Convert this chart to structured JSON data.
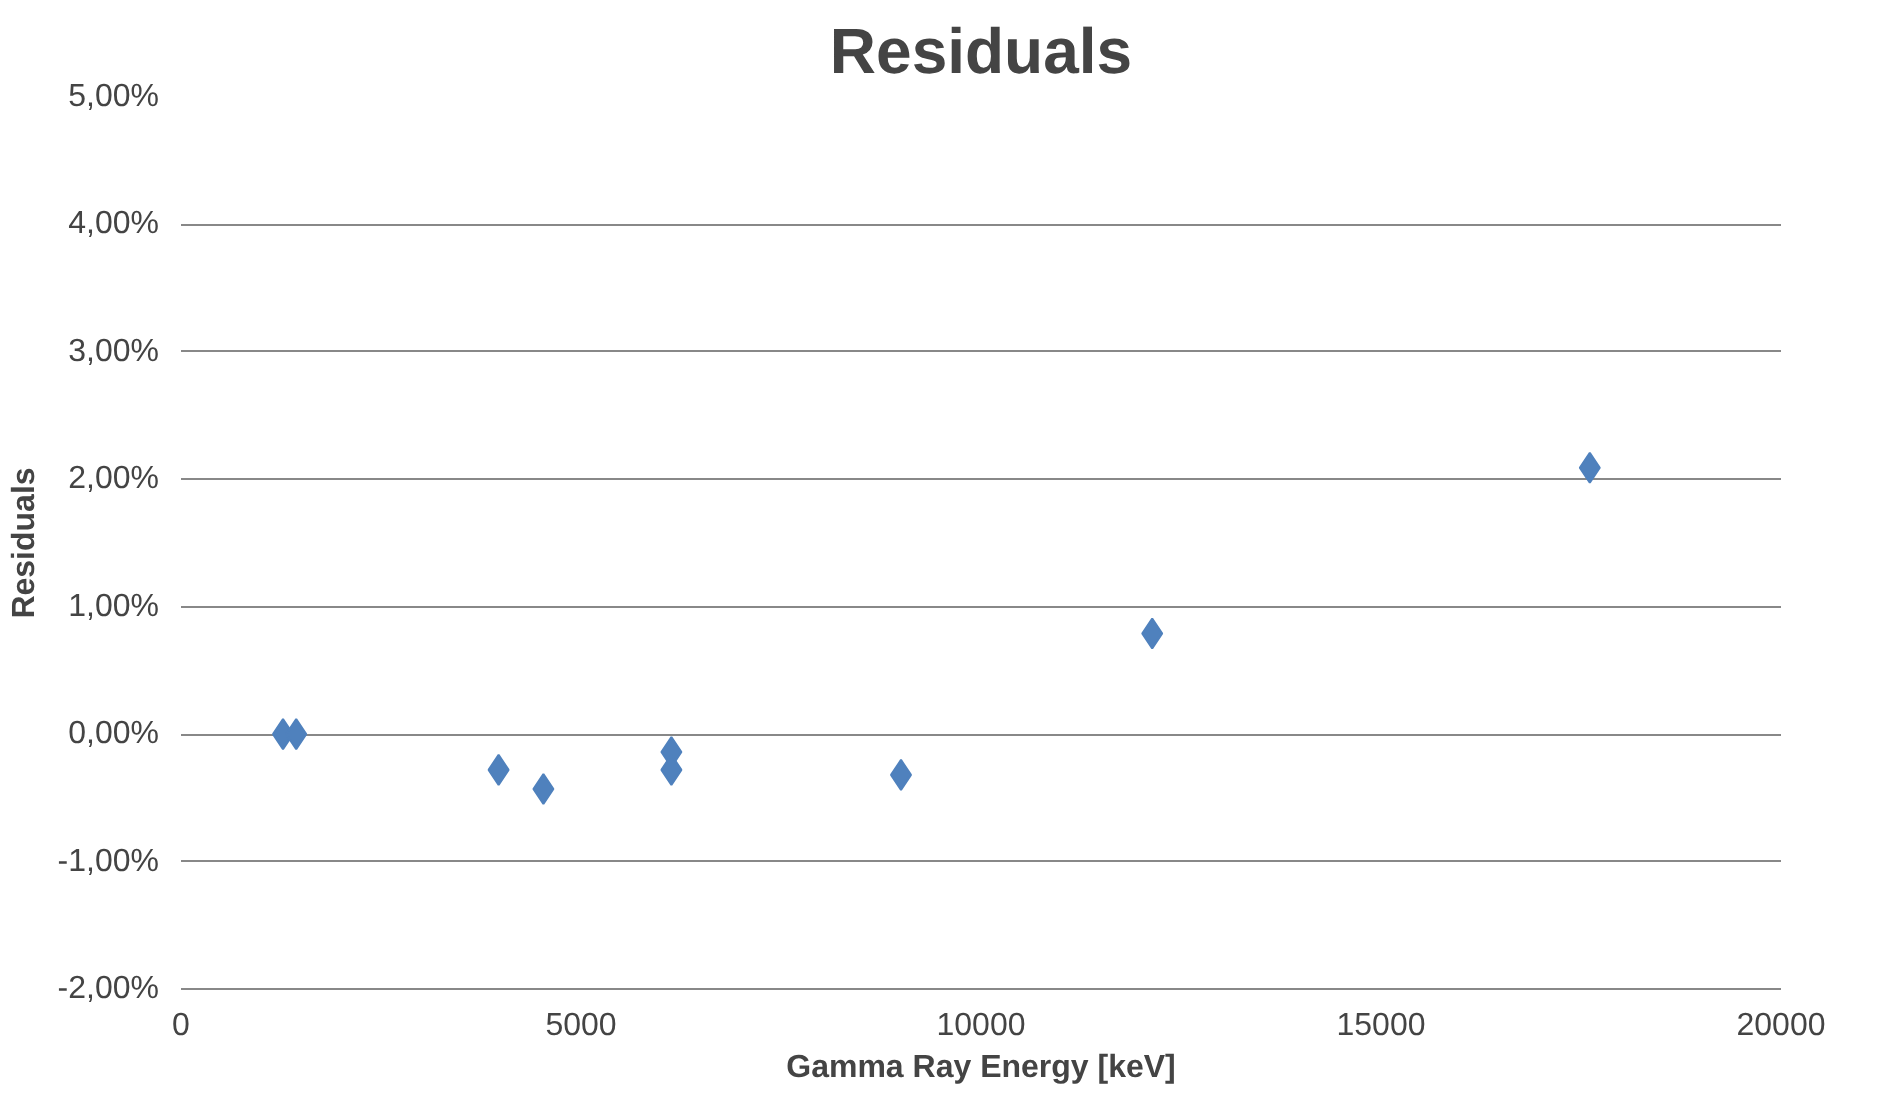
{
  "chart_data": {
    "type": "scatter",
    "title": "Residuals",
    "xlabel": "Gamma Ray Energy [keV]",
    "ylabel": "Residuals",
    "x": [
      1275,
      1440,
      3970,
      4530,
      6130,
      6130,
      9000,
      12140,
      17610
    ],
    "series": [
      {
        "color": "#4f81bd",
        "values": [
          0.0,
          0.0,
          -0.28,
          -0.43,
          -0.14,
          -0.28,
          -0.32,
          0.79,
          2.09
        ]
      }
    ],
    "xlim": [
      0,
      20000
    ],
    "xticks": [
      0,
      5000,
      10000,
      15000,
      20000
    ],
    "ylim": [
      -2,
      5
    ],
    "yticks": [
      {
        "value": -2,
        "label": "-2,00%"
      },
      {
        "value": -1,
        "label": "-1,00%"
      },
      {
        "value": 0,
        "label": "0,00%"
      },
      {
        "value": 1,
        "label": "1,00%"
      },
      {
        "value": 2,
        "label": "2,00%"
      },
      {
        "value": 3,
        "label": "3,00%"
      },
      {
        "value": 4,
        "label": "4,00%"
      },
      {
        "value": 5,
        "label": "5,00%"
      }
    ],
    "grid": "y",
    "marker": "diamond"
  }
}
